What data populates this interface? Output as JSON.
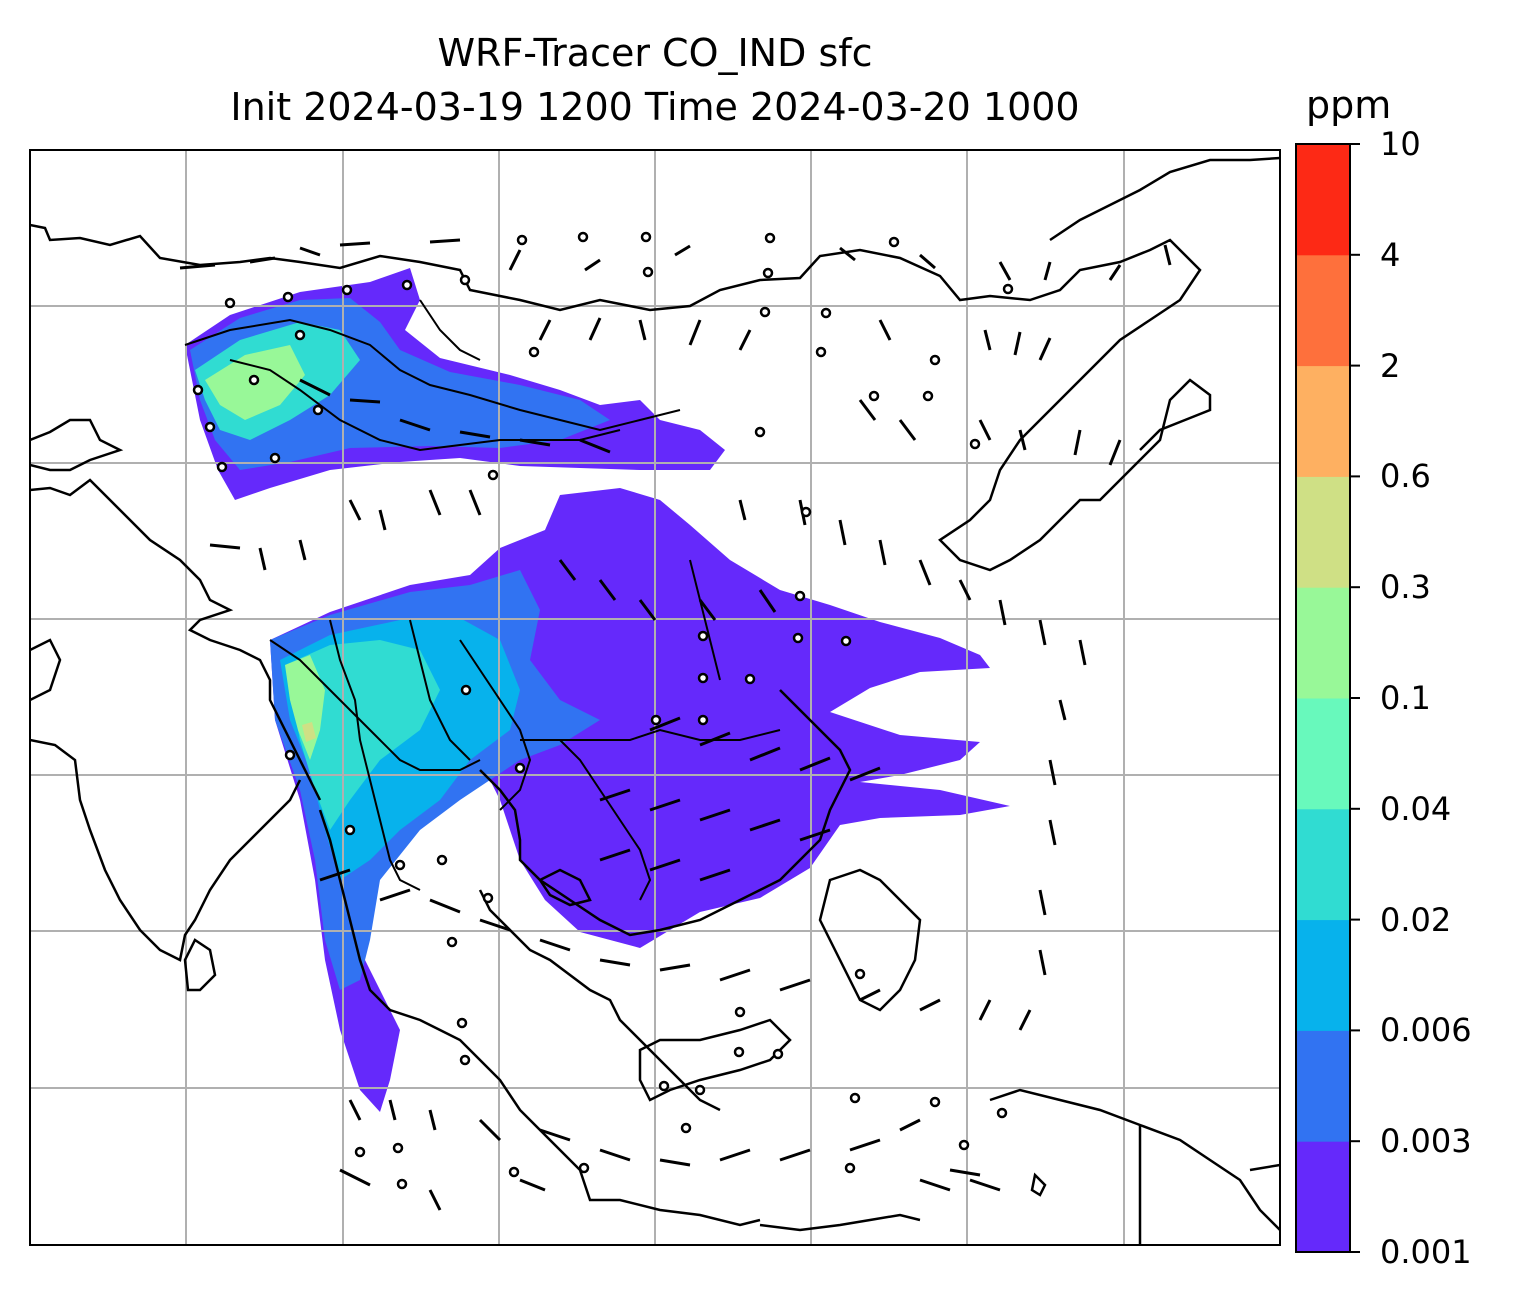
{
  "title": {
    "line1": "WRF-Tracer CO_IND sfc",
    "line2": "Init 2024-03-19 1200 Time 2024-03-20 1000"
  },
  "colorbar": {
    "unit": "ppm",
    "levels": [
      "0.001",
      "0.003",
      "0.006",
      "0.02",
      "0.04",
      "0.1",
      "0.3",
      "0.6",
      "2",
      "4",
      "10"
    ],
    "colors": [
      "#6529fb",
      "#3173f2",
      "#07b2ec",
      "#30dcd2",
      "#68f9bc",
      "#98f898",
      "#cfe085",
      "#feb061",
      "#fe703c",
      "#fd2915"
    ]
  },
  "map": {
    "gridlines": true,
    "land_outline_color": "#000000",
    "tracer_fill_colors": {
      "low": "#6529fb",
      "medium": "#3173f2",
      "mid": "#07b2ec",
      "high": "#30dcd2",
      "higher": "#68f9bc",
      "highest": "#98f898",
      "peak": "#cfe085"
    }
  }
}
